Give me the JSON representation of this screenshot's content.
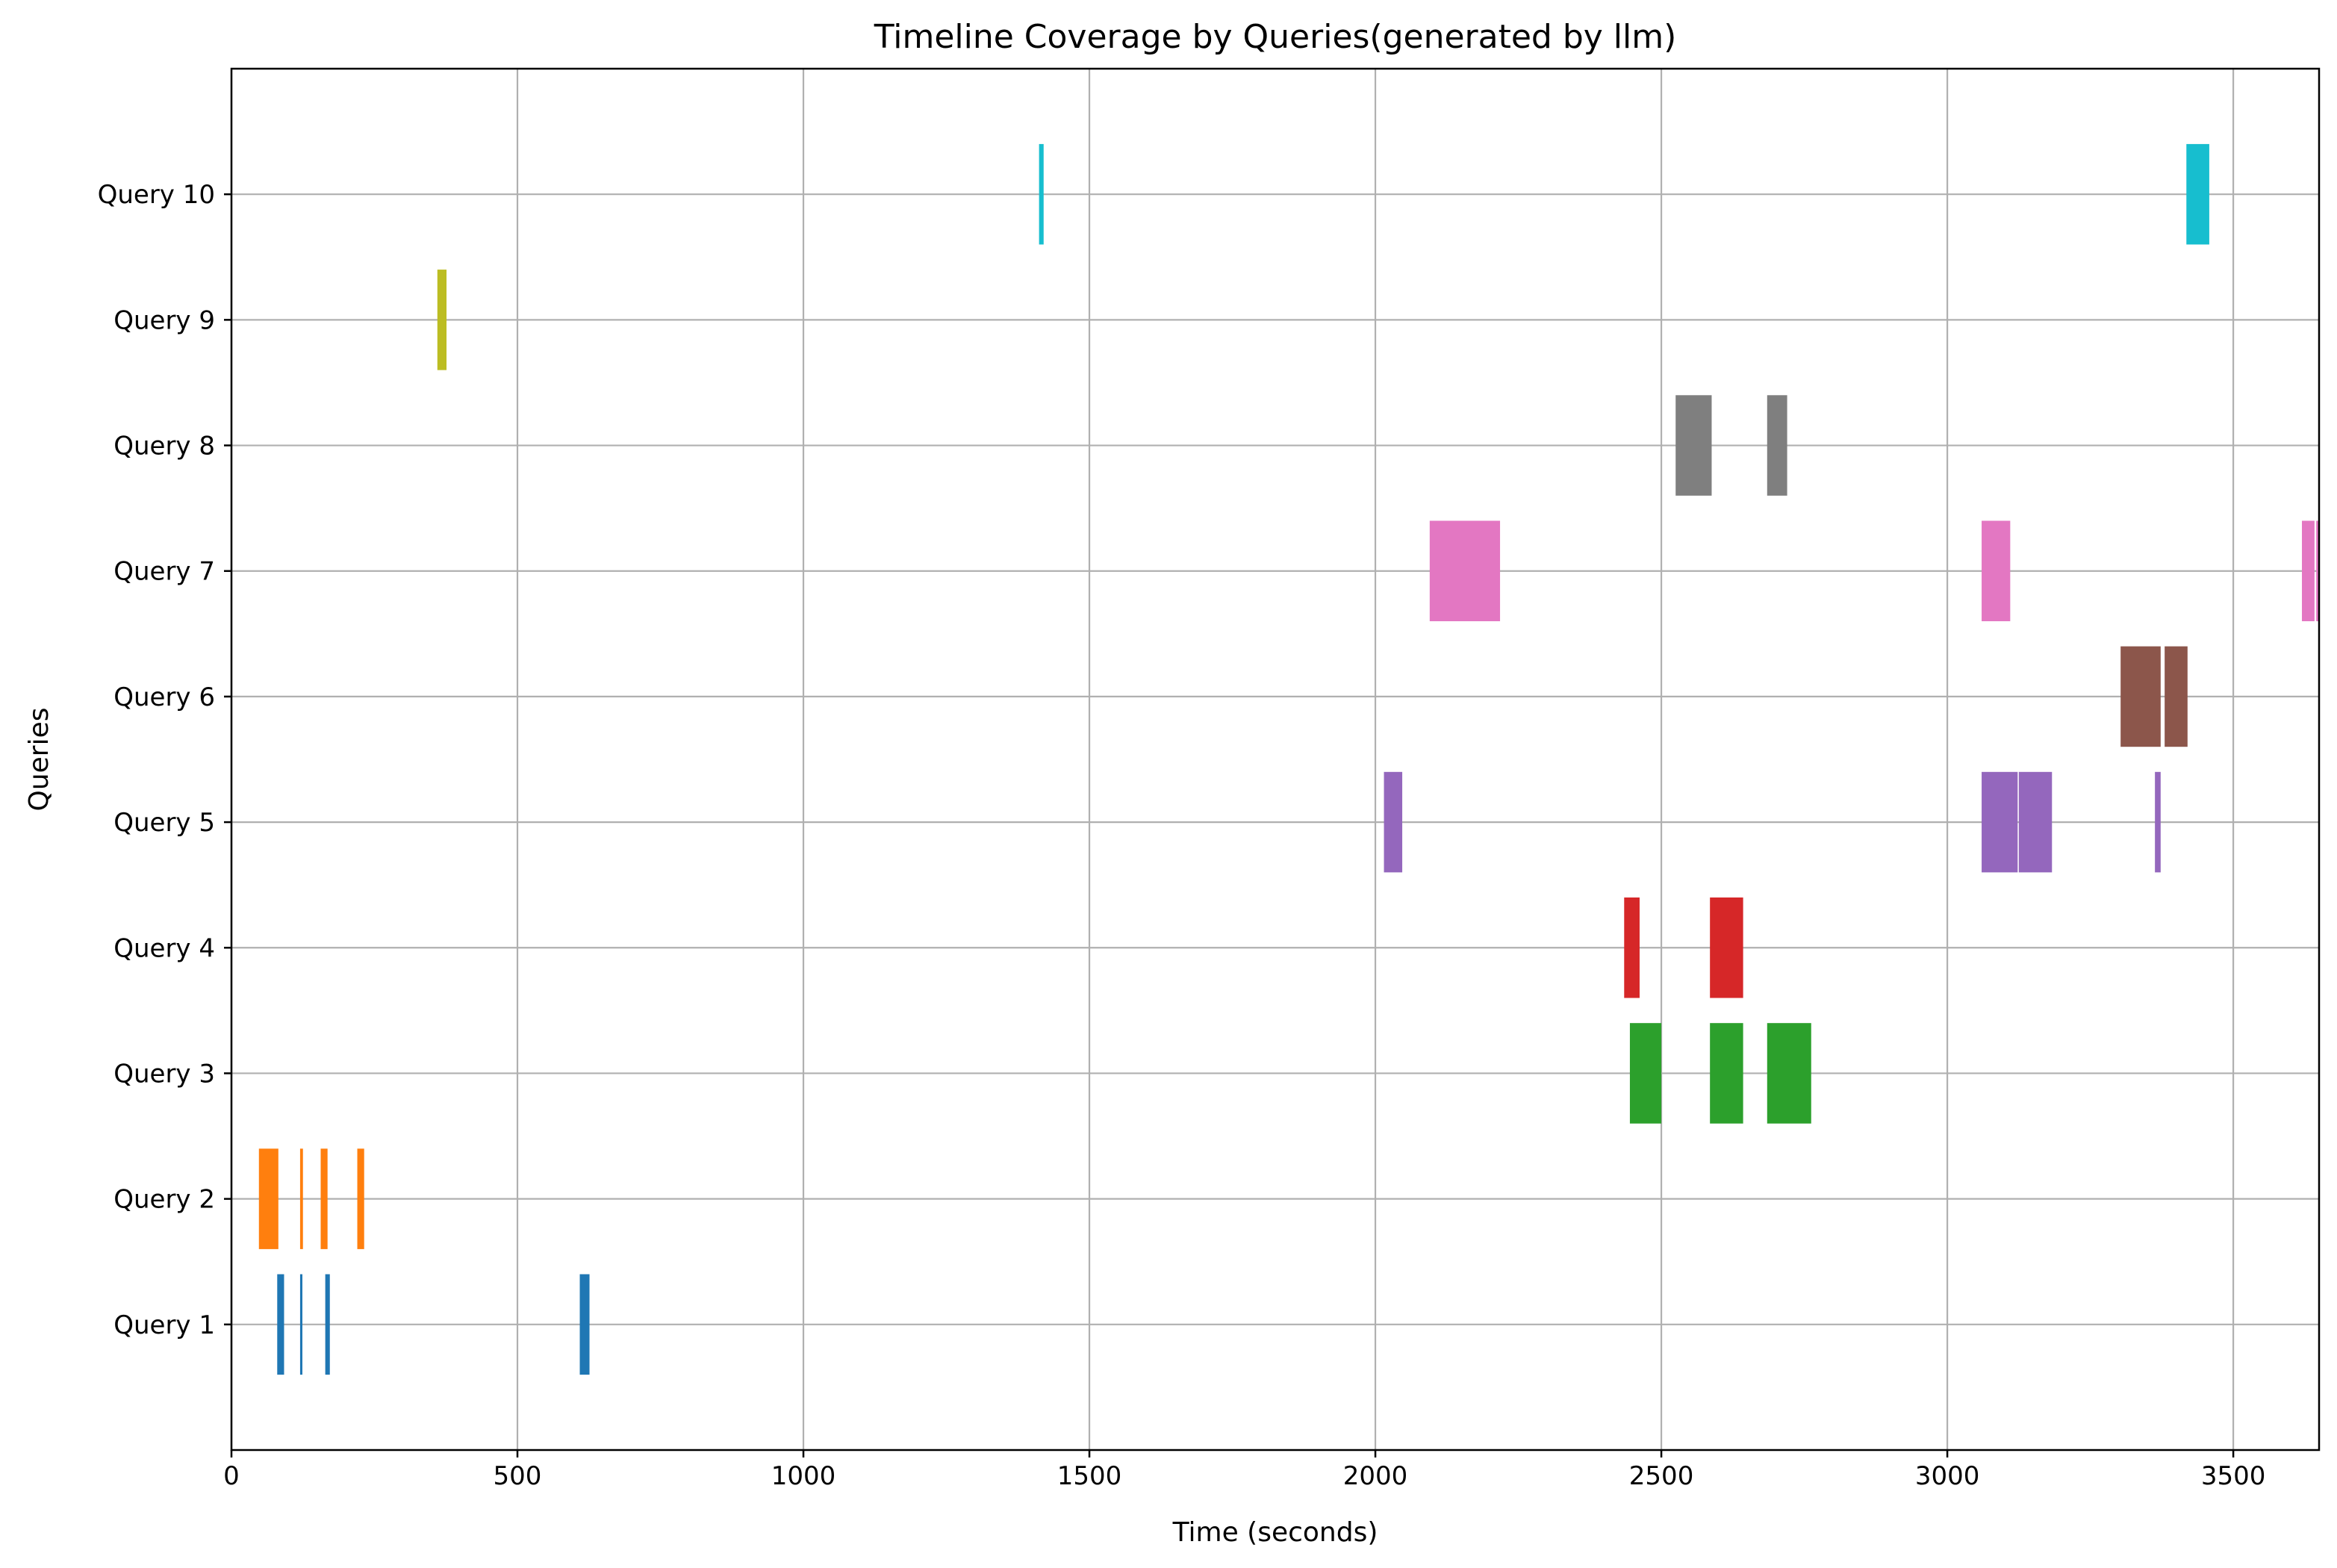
{
  "chart_data": {
    "type": "broken_barh",
    "title": "Timeline Coverage by Queries(generated by llm)",
    "xlabel": "Time (seconds)",
    "ylabel": "Queries",
    "xlim": [
      0,
      3650
    ],
    "ylim": [
      0,
      11
    ],
    "xticks": [
      0,
      500,
      1000,
      1500,
      2000,
      2500,
      3000,
      3500
    ],
    "grid": true,
    "series": [
      {
        "label": "Query 1",
        "y": 1,
        "color": "#1f77b4",
        "intervals": [
          [
            80,
            92
          ],
          [
            120,
            124
          ],
          [
            164,
            172
          ],
          [
            609,
            626
          ]
        ]
      },
      {
        "label": "Query 2",
        "y": 2,
        "color": "#ff7f0e",
        "intervals": [
          [
            48,
            82
          ],
          [
            120,
            125
          ],
          [
            156,
            168
          ],
          [
            220,
            232
          ]
        ]
      },
      {
        "label": "Query 3",
        "y": 3,
        "color": "#2ca02c",
        "intervals": [
          [
            2445,
            2500
          ],
          [
            2585,
            2643
          ],
          [
            2685,
            2762
          ]
        ]
      },
      {
        "label": "Query 4",
        "y": 4,
        "color": "#d62728",
        "intervals": [
          [
            2435,
            2462
          ],
          [
            2585,
            2643
          ]
        ]
      },
      {
        "label": "Query 5",
        "y": 5,
        "color": "#9467bd",
        "intervals": [
          [
            2015,
            2047
          ],
          [
            3060,
            3123
          ],
          [
            3125,
            3183
          ],
          [
            3363,
            3373
          ]
        ]
      },
      {
        "label": "Query 6",
        "y": 6,
        "color": "#8c564b",
        "intervals": [
          [
            3303,
            3373
          ],
          [
            3380,
            3420
          ]
        ]
      },
      {
        "label": "Query 7",
        "y": 7,
        "color": "#e377c2",
        "intervals": [
          [
            2095,
            2218
          ],
          [
            3060,
            3110
          ],
          [
            3620,
            3642
          ],
          [
            3645,
            3655
          ]
        ]
      },
      {
        "label": "Query 8",
        "y": 8,
        "color": "#7f7f7f",
        "intervals": [
          [
            2525,
            2588
          ],
          [
            2685,
            2720
          ]
        ]
      },
      {
        "label": "Query 9",
        "y": 9,
        "color": "#bcbd22",
        "intervals": [
          [
            360,
            376
          ]
        ]
      },
      {
        "label": "Query 10",
        "y": 10,
        "color": "#17becf",
        "intervals": [
          [
            1412,
            1420
          ],
          [
            3418,
            3458
          ]
        ]
      }
    ]
  }
}
